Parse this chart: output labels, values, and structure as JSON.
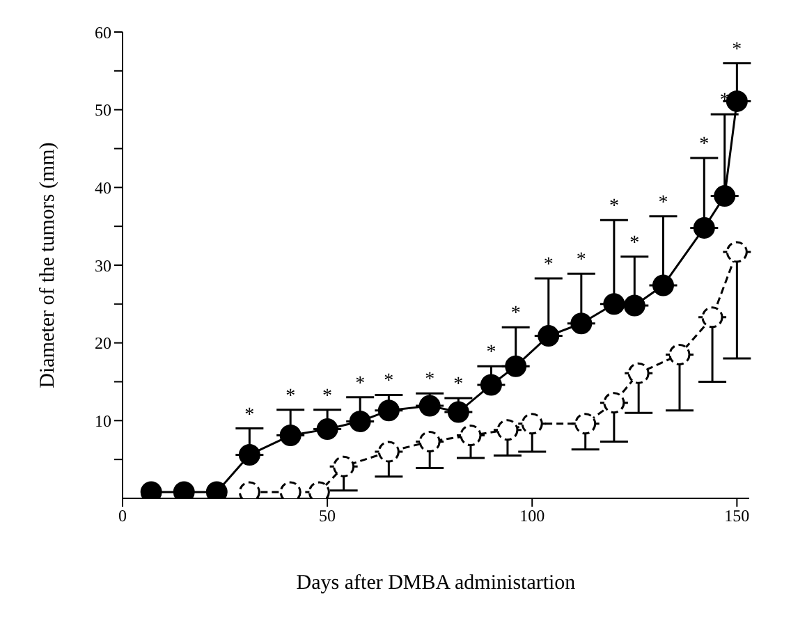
{
  "chart_data": {
    "type": "line",
    "xlabel": "Days after DMBA administartion",
    "ylabel": "Diameter of the tumors (mm)",
    "xlim": [
      0,
      153
    ],
    "xticks": [
      0,
      50,
      100,
      150
    ],
    "ylim": [
      0,
      60
    ],
    "yticks": [
      {
        "value": 5,
        "label": null
      },
      10,
      {
        "value": 15,
        "label": null
      },
      20,
      {
        "value": 25,
        "label": null
      },
      30,
      {
        "value": 35,
        "label": null
      },
      40,
      {
        "value": 45,
        "label": null
      },
      50,
      {
        "value": 55,
        "label": null
      },
      60
    ],
    "marker": "circle",
    "grid": false,
    "series": [
      {
        "color": "#000000",
        "line_style": "solid",
        "x": [
          7,
          15,
          23,
          31,
          41,
          50,
          58,
          65,
          75,
          82,
          90,
          96,
          104,
          112,
          120,
          125,
          132,
          142,
          147,
          150
        ],
        "values": [
          0.8,
          0.8,
          0.8,
          5.6,
          8.1,
          8.9,
          9.9,
          11.3,
          11.9,
          11.1,
          14.6,
          17,
          20.9,
          22.5,
          25,
          24.8,
          27.4,
          34.8,
          38.9,
          51.1
        ],
        "errors": [
          null,
          null,
          null,
          [
            5.6,
            9
          ],
          [
            8.1,
            11.4
          ],
          [
            8.9,
            11.4
          ],
          [
            9.9,
            13
          ],
          [
            11.3,
            13.3
          ],
          [
            11.9,
            13.5
          ],
          [
            11.1,
            12.9
          ],
          [
            14.6,
            17
          ],
          [
            17,
            22
          ],
          [
            20.9,
            28.3
          ],
          [
            22.5,
            28.9
          ],
          [
            25,
            35.8
          ],
          [
            24.8,
            31.1
          ],
          [
            27.4,
            36.3
          ],
          [
            34.8,
            43.8
          ],
          [
            38.9,
            49.4
          ],
          [
            51.1,
            56
          ]
        ]
      },
      {
        "color": "#ffffff",
        "line_style": "dashed",
        "x": [
          31,
          41,
          48,
          54,
          65,
          75,
          85,
          94,
          100,
          113,
          120,
          126,
          136,
          144,
          150
        ],
        "values": [
          0.8,
          0.8,
          0.8,
          4.1,
          6,
          7.3,
          8.1,
          8.8,
          9.6,
          9.6,
          12.3,
          16.1,
          18.5,
          23.3,
          31.7
        ],
        "errors": [
          null,
          null,
          null,
          [
            1,
            4.1
          ],
          [
            2.8,
            6
          ],
          [
            3.9,
            7.3
          ],
          [
            5.2,
            8.1
          ],
          [
            5.5,
            8.8
          ],
          [
            6,
            9.6
          ],
          [
            6.3,
            9.6
          ],
          [
            7.3,
            12.3
          ],
          [
            11,
            16.1
          ],
          [
            11.3,
            18.5
          ],
          [
            15,
            23.3
          ],
          [
            18,
            31.7
          ]
        ]
      }
    ],
    "annotations": [
      {
        "text": "*",
        "x": 31,
        "y": 9
      },
      {
        "text": "*",
        "x": 41,
        "y": 11.4
      },
      {
        "text": "*",
        "x": 50,
        "y": 11.4
      },
      {
        "text": "*",
        "x": 58,
        "y": 13
      },
      {
        "text": "*",
        "x": 65,
        "y": 13.3
      },
      {
        "text": "*",
        "x": 75,
        "y": 13.5
      },
      {
        "text": "*",
        "x": 82,
        "y": 12.9
      },
      {
        "text": "*",
        "x": 90,
        "y": 17
      },
      {
        "text": "*",
        "x": 96,
        "y": 22
      },
      {
        "text": "*",
        "x": 104,
        "y": 28.3
      },
      {
        "text": "*",
        "x": 112,
        "y": 28.9
      },
      {
        "text": "*",
        "x": 120,
        "y": 35.8
      },
      {
        "text": "*",
        "x": 125,
        "y": 31.1
      },
      {
        "text": "*",
        "x": 132,
        "y": 36.3
      },
      {
        "text": "*",
        "x": 142,
        "y": 43.8
      },
      {
        "text": "*",
        "x": 147,
        "y": 49.4
      },
      {
        "text": "*",
        "x": 150,
        "y": 56
      }
    ]
  }
}
